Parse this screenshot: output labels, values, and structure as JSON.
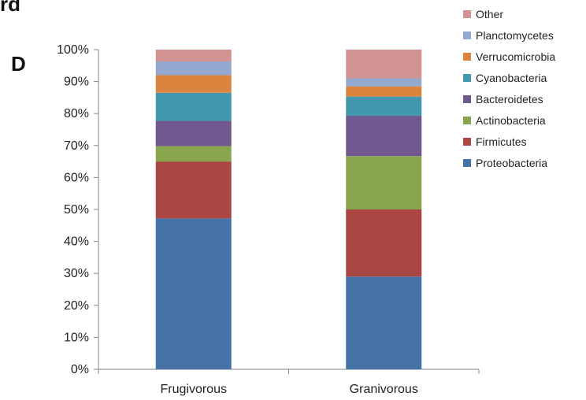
{
  "corner_text": "rd",
  "panel_letter": "D",
  "chart_data": {
    "type": "bar",
    "stacked": true,
    "title": "",
    "xlabel": "",
    "ylabel": "",
    "ylim": [
      0,
      100
    ],
    "yticks": [
      "0%",
      "10%",
      "20%",
      "30%",
      "40%",
      "50%",
      "60%",
      "70%",
      "80%",
      "90%",
      "100%"
    ],
    "categories": [
      "Frugivorous",
      "Granivorous"
    ],
    "legend_position": "top-right",
    "grid": false,
    "series": [
      {
        "name": "Proteobacteria",
        "color": "#4572A7",
        "values": [
          47.2,
          29.0
        ]
      },
      {
        "name": "Firmicutes",
        "color": "#AA4643",
        "values": [
          17.8,
          21.0
        ]
      },
      {
        "name": "Actinobacteria",
        "color": "#89A54E",
        "values": [
          4.8,
          16.7
        ]
      },
      {
        "name": "Bacteroidetes",
        "color": "#71588F",
        "values": [
          7.9,
          12.6
        ]
      },
      {
        "name": "Cyanobacteria",
        "color": "#4198AF",
        "values": [
          8.8,
          6.0
        ]
      },
      {
        "name": "Verrucomicrobia",
        "color": "#DB843D",
        "values": [
          5.5,
          3.2
        ]
      },
      {
        "name": "Planctomycetes",
        "color": "#93A9CF",
        "values": [
          4.3,
          2.5
        ]
      },
      {
        "name": "Other",
        "color": "#D19392",
        "values": [
          3.7,
          9.0
        ]
      }
    ]
  }
}
